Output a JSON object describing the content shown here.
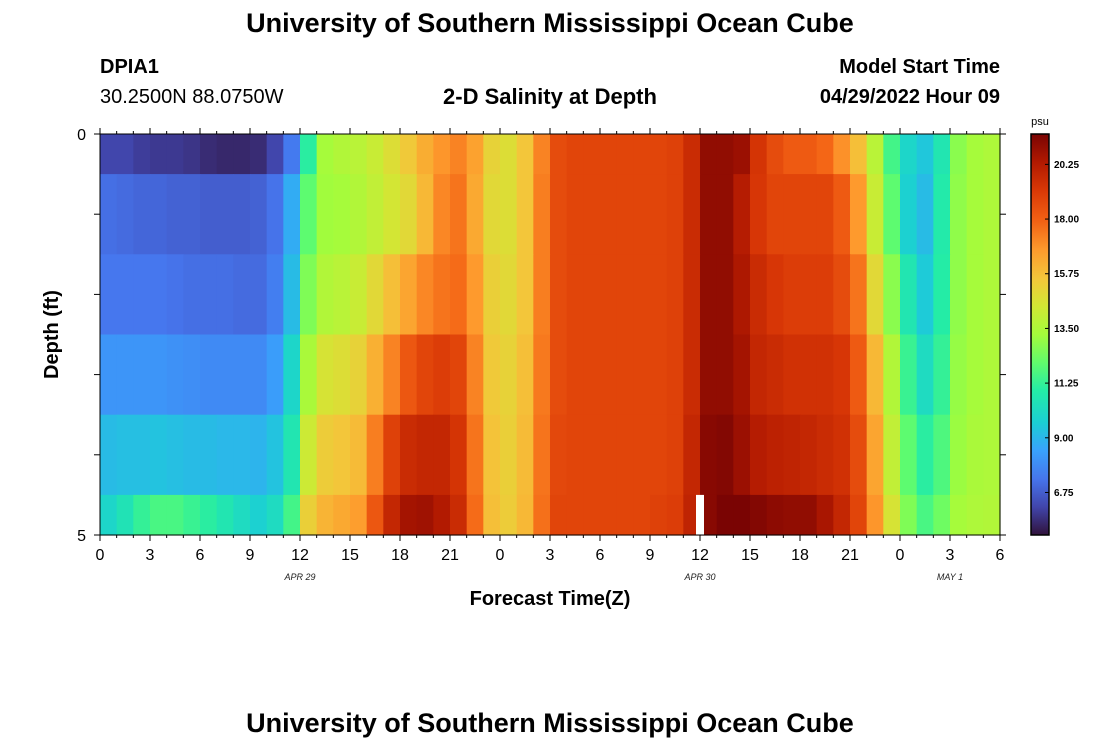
{
  "header": {
    "title": "University of Southern Mississippi Ocean Cube",
    "station_id": "DPIA1",
    "coords": "30.2500N  88.0750W",
    "plot_title": "2-D Salinity at Depth",
    "model_label": "Model Start Time",
    "model_time": "04/29/2022 Hour 09"
  },
  "footer": {
    "title": "University of Southern Mississippi Ocean Cube"
  },
  "chart_data": {
    "type": "heatmap",
    "title": "2-D Salinity at Depth",
    "xlabel": "Forecast Time(Z)",
    "ylabel": "Depth (ft)",
    "x_ticks": [
      "0",
      "3",
      "6",
      "9",
      "12",
      "15",
      "18",
      "21",
      "0",
      "3",
      "6",
      "9",
      "12",
      "15",
      "18",
      "21",
      "0",
      "3",
      "6"
    ],
    "y_ticks": [
      "0",
      "5"
    ],
    "date_labels": [
      {
        "label": "APR 29",
        "hour": 12
      },
      {
        "label": "APR 30",
        "hour": 36
      },
      {
        "label": "MAY 1",
        "hour": 51
      }
    ],
    "xlim": [
      0,
      54
    ],
    "ylim": [
      0,
      5
    ],
    "colorbar": {
      "unit": "psu",
      "ticks": [
        "6.75",
        "9.00",
        "11.25",
        "13.50",
        "15.75",
        "18.00",
        "20.25"
      ],
      "range": [
        5.0,
        21.5
      ]
    },
    "missing_cell": {
      "hour": 36,
      "depth_start": 4.5,
      "depth_end": 5
    },
    "depth_rows": [
      "0-0.5",
      "0.5-1.5",
      "1.5-2.5",
      "2.5-3.5",
      "3.5-4.5",
      "4.5-5"
    ],
    "hours": [
      0,
      1,
      2,
      3,
      4,
      5,
      6,
      7,
      8,
      9,
      10,
      11,
      12,
      13,
      14,
      15,
      16,
      17,
      18,
      19,
      20,
      21,
      22,
      23,
      24,
      25,
      26,
      27,
      28,
      29,
      30,
      31,
      32,
      33,
      34,
      35,
      36,
      37,
      38,
      39,
      40,
      41,
      42,
      43,
      44,
      45,
      46,
      47,
      48,
      49,
      50,
      51,
      52,
      53
    ],
    "salinity": [
      [
        6.2,
        6.2,
        6.0,
        5.9,
        5.9,
        5.8,
        5.6,
        5.5,
        5.5,
        5.6,
        6.2,
        7.5,
        11.0,
        13.3,
        13.6,
        13.8,
        14.2,
        14.8,
        15.5,
        16.3,
        16.9,
        17.3,
        16.6,
        15.2,
        14.8,
        15.6,
        17.3,
        18.6,
        18.8,
        18.8,
        18.8,
        18.8,
        18.8,
        18.8,
        18.9,
        19.6,
        21.0,
        21.0,
        20.8,
        19.3,
        18.6,
        18.2,
        18.2,
        17.9,
        17.0,
        15.8,
        13.8,
        11.5,
        10.0,
        9.5,
        10.6,
        12.8,
        13.3,
        13.5
      ],
      [
        7.2,
        7.1,
        7.0,
        7.0,
        6.9,
        6.9,
        6.8,
        6.8,
        6.8,
        6.9,
        7.3,
        8.8,
        12.0,
        13.2,
        13.3,
        13.6,
        14.0,
        14.5,
        15.0,
        16.0,
        17.2,
        17.6,
        16.4,
        15.0,
        14.8,
        15.6,
        17.4,
        18.6,
        18.8,
        18.8,
        18.8,
        18.8,
        18.8,
        18.8,
        18.9,
        19.6,
        21.0,
        21.0,
        20.2,
        19.2,
        18.8,
        18.8,
        18.8,
        18.8,
        18.2,
        16.8,
        14.2,
        12.0,
        9.8,
        9.2,
        10.8,
        12.9,
        13.3,
        13.5
      ],
      [
        7.4,
        7.4,
        7.4,
        7.4,
        7.3,
        7.2,
        7.2,
        7.2,
        7.1,
        7.1,
        7.6,
        9.2,
        12.6,
        13.6,
        13.8,
        14.2,
        15.0,
        15.8,
        16.5,
        17.2,
        17.6,
        17.8,
        16.8,
        15.3,
        15.0,
        15.6,
        17.4,
        18.6,
        18.8,
        18.8,
        18.8,
        18.8,
        18.8,
        18.8,
        18.9,
        19.6,
        21.0,
        21.0,
        20.4,
        19.6,
        19.2,
        19.0,
        19.0,
        19.0,
        18.6,
        17.6,
        15.0,
        12.8,
        10.6,
        9.6,
        10.9,
        12.9,
        13.3,
        13.5
      ],
      [
        8.2,
        8.2,
        8.2,
        8.2,
        8.1,
        8.0,
        7.9,
        7.9,
        7.9,
        7.9,
        8.4,
        10.0,
        13.4,
        14.6,
        14.8,
        15.2,
        16.2,
        17.3,
        18.3,
        18.8,
        19.0,
        18.8,
        17.3,
        15.5,
        15.2,
        15.8,
        17.5,
        18.6,
        18.8,
        18.8,
        18.8,
        18.8,
        18.8,
        18.8,
        18.9,
        19.6,
        21.0,
        21.0,
        20.6,
        19.8,
        19.6,
        19.4,
        19.4,
        19.4,
        19.2,
        18.2,
        16.0,
        13.6,
        11.3,
        10.2,
        11.2,
        13.0,
        13.3,
        13.5
      ],
      [
        9.2,
        9.3,
        9.3,
        9.4,
        9.3,
        9.2,
        9.2,
        9.1,
        9.1,
        9.0,
        9.4,
        10.6,
        14.3,
        15.4,
        15.6,
        15.9,
        17.4,
        18.9,
        19.6,
        19.8,
        19.8,
        19.3,
        17.6,
        15.7,
        15.3,
        15.9,
        17.6,
        18.7,
        18.8,
        18.8,
        18.8,
        18.8,
        18.8,
        18.8,
        18.9,
        19.8,
        21.2,
        21.3,
        20.8,
        20.2,
        20.0,
        19.9,
        19.8,
        19.6,
        19.4,
        18.6,
        16.5,
        14.0,
        12.0,
        11.0,
        11.7,
        13.1,
        13.4,
        13.5
      ],
      [
        10.0,
        10.5,
        11.2,
        11.6,
        11.6,
        11.3,
        11.0,
        10.6,
        10.2,
        9.8,
        10.2,
        11.5,
        15.3,
        16.1,
        16.4,
        16.7,
        18.3,
        19.8,
        20.6,
        20.7,
        20.3,
        19.6,
        17.8,
        15.8,
        15.4,
        16.0,
        17.7,
        18.8,
        18.8,
        18.8,
        18.8,
        18.8,
        18.8,
        18.9,
        19.0,
        19.9,
        21.2,
        21.6,
        21.5,
        21.3,
        21.1,
        21.0,
        21.0,
        20.5,
        19.8,
        18.8,
        16.9,
        14.6,
        12.6,
        11.6,
        12.3,
        13.3,
        13.5,
        13.6
      ]
    ]
  }
}
